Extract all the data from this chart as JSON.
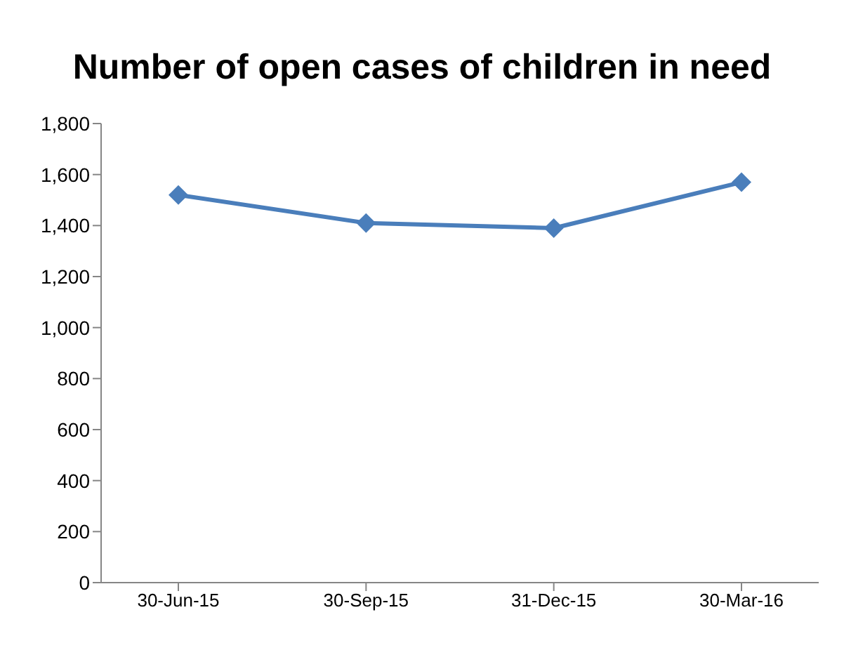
{
  "chart_data": {
    "type": "line",
    "title": "Number of open cases of children in need",
    "categories": [
      "30-Jun-15",
      "30-Sep-15",
      "31-Dec-15",
      "30-Mar-16"
    ],
    "series": [
      {
        "color": "#4a7ebb",
        "values": [
          1520,
          1410,
          1390,
          1570
        ]
      }
    ],
    "ylim": [
      0,
      1800
    ],
    "yticks": [
      0,
      200,
      400,
      600,
      800,
      {
        "value": 1000,
        "label": "1,000"
      },
      {
        "value": 1200,
        "label": "1,200"
      },
      {
        "value": 1400,
        "label": "1,400"
      },
      {
        "value": 1600,
        "label": "1,600"
      },
      {
        "value": 1800,
        "label": "1,800"
      }
    ],
    "grid": false,
    "legend": false,
    "marker": "diamond",
    "line_style": "solid"
  }
}
